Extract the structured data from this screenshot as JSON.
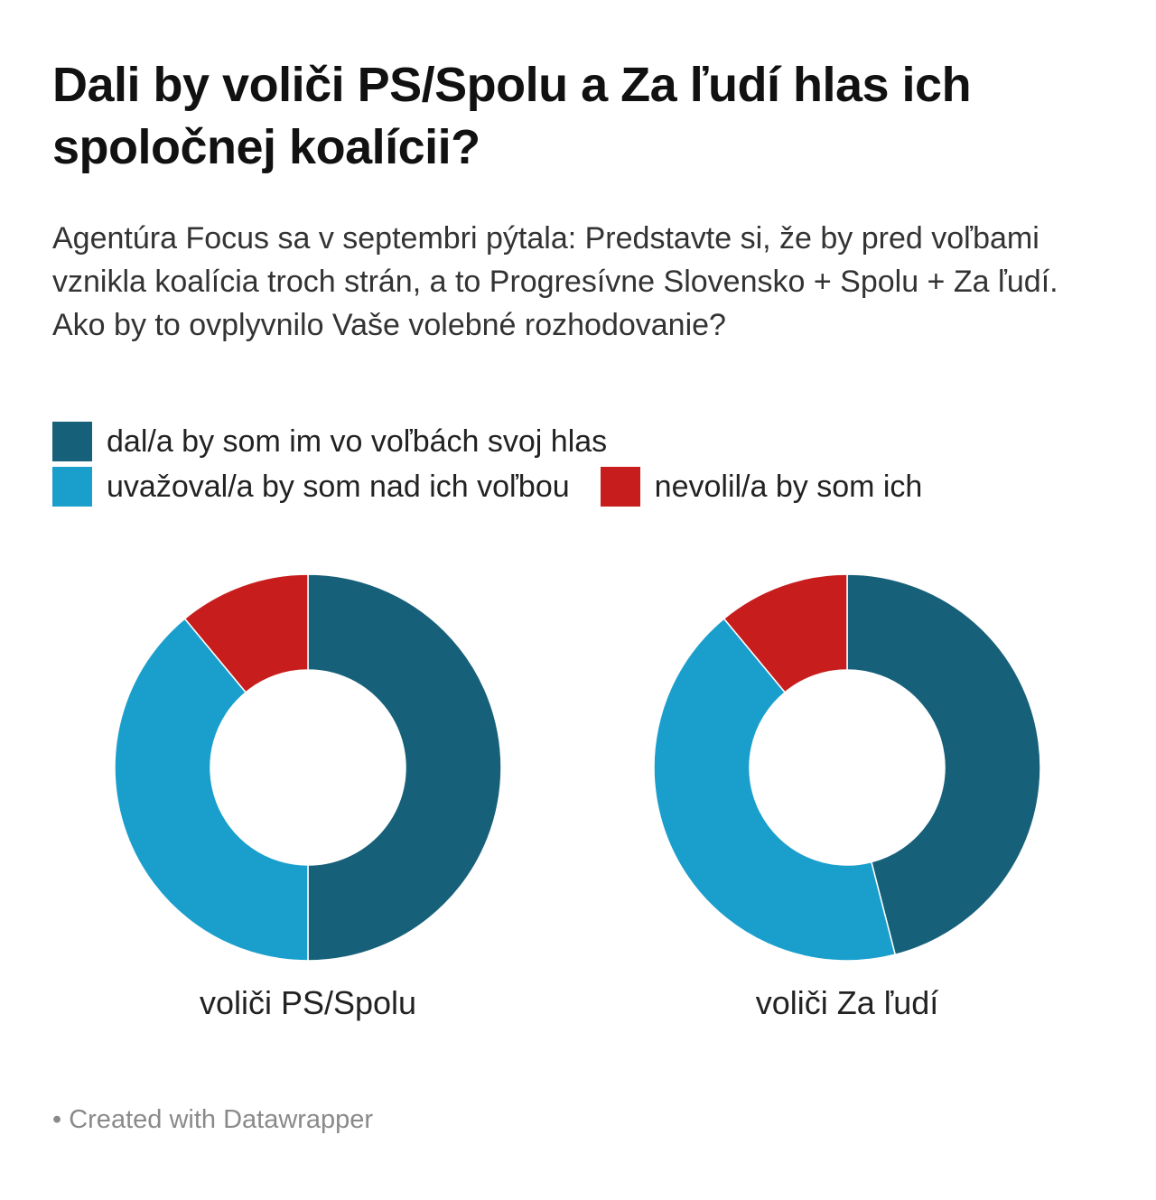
{
  "title": "Dali by voliči PS/Spolu a Za ľudí hlas ich spoločnej koalícii?",
  "subtitle": "Agentúra Focus sa v septembri pýtala: Predstavte si, že by pred voľbami vznikla koalícia troch strán, a to Progresívne Slovensko + Spolu + Za ľudí. Ako by to ovplyvnilo Vaše volebné rozhodovanie?",
  "legend": [
    {
      "label": "dal/a by som im vo voľbách svoj hlas",
      "color": "#176079"
    },
    {
      "label": "uvažoval/a by som nad ich voľbou",
      "color": "#1a9fcd"
    },
    {
      "label": "nevolil/a by som ich",
      "color": "#c71e1d"
    }
  ],
  "chart_data": [
    {
      "type": "pie",
      "donut": true,
      "title": "voliči PS/Spolu",
      "categories": [
        "dal/a by som im vo voľbách svoj hlas",
        "uvažoval/a by som nad ich voľbou",
        "nevolil/a by som ich"
      ],
      "values": [
        50,
        39,
        11
      ],
      "colors": [
        "#176079",
        "#1a9fcd",
        "#c71e1d"
      ]
    },
    {
      "type": "pie",
      "donut": true,
      "title": "voliči Za ľudí",
      "categories": [
        "dal/a by som im vo voľbách svoj hlas",
        "uvažoval/a by som nad ich voľbou",
        "nevolil/a by som ich"
      ],
      "values": [
        46,
        43,
        11
      ],
      "colors": [
        "#176079",
        "#1a9fcd",
        "#c71e1d"
      ]
    }
  ],
  "footer": "• Created with Datawrapper"
}
